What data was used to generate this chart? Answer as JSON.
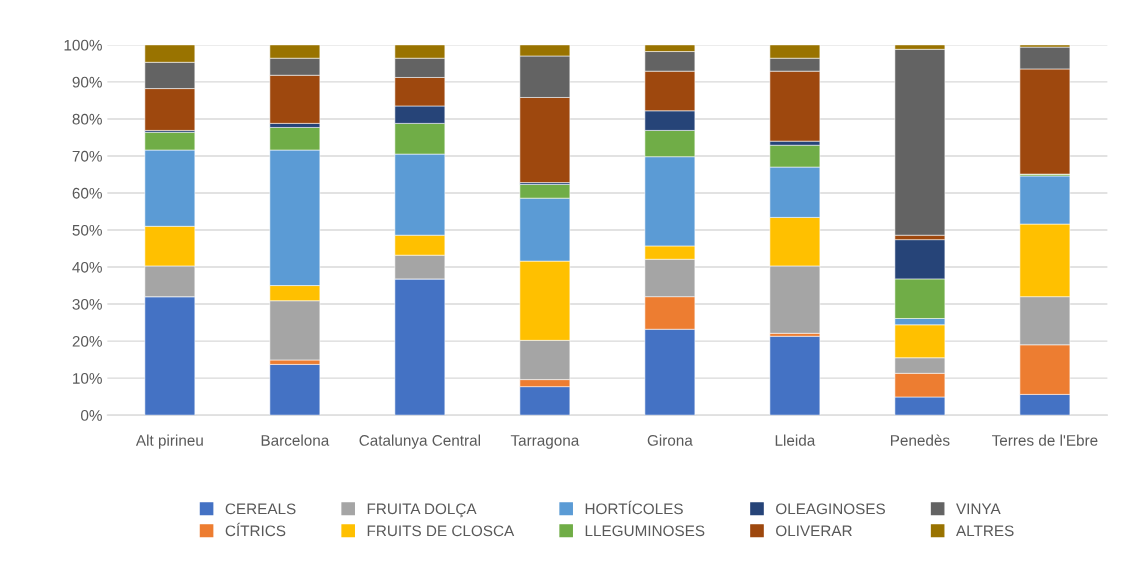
{
  "chart_data": {
    "type": "bar",
    "stacked": true,
    "categories": [
      "Alt pirineu",
      "Barcelona",
      "Catalunya Central",
      "Tarragona",
      "Girona",
      "Lleida",
      "Penedès",
      "Terres de l'Ebre"
    ],
    "series": [
      {
        "name": "CEREALS",
        "color": "#4472c4",
        "values": [
          32.0,
          13.7,
          36.8,
          7.7,
          23.2,
          21.3,
          4.9,
          5.6
        ]
      },
      {
        "name": "CÍTRICS",
        "color": "#ed7d31",
        "values": [
          0,
          1.2,
          0,
          1.9,
          8.8,
          0.8,
          6.4,
          13.4
        ]
      },
      {
        "name": "FRUITA DOLÇA",
        "color": "#a5a5a5",
        "values": [
          8.3,
          16.0,
          6.4,
          10.6,
          10.1,
          18.2,
          4.2,
          13.0
        ]
      },
      {
        "name": "FRUITS DE CLOSCA",
        "color": "#ffc000",
        "values": [
          10.7,
          4.1,
          5.4,
          21.4,
          3.6,
          13.1,
          8.9,
          19.6
        ]
      },
      {
        "name": "HORTÍCOLES",
        "color": "#5b9bd5",
        "values": [
          20.6,
          36.6,
          21.9,
          17.0,
          24.1,
          13.6,
          1.7,
          13.0
        ]
      },
      {
        "name": "LLEGUMINOSES",
        "color": "#70ad47",
        "values": [
          4.8,
          6.1,
          8.3,
          3.7,
          7.1,
          5.9,
          10.7,
          0.5
        ]
      },
      {
        "name": "OLEAGINOSES",
        "color": "#264478",
        "values": [
          0.5,
          1.1,
          4.7,
          0.5,
          5.3,
          1.1,
          10.6,
          0
        ]
      },
      {
        "name": "OLIVERAR",
        "color": "#9e480e",
        "values": [
          11.3,
          13.0,
          7.7,
          23.0,
          10.7,
          18.9,
          1.2,
          28.4
        ]
      },
      {
        "name": "VINYA",
        "color": "#636363",
        "values": [
          7.1,
          4.6,
          5.2,
          11.2,
          5.3,
          3.5,
          50.2,
          5.9
        ]
      },
      {
        "name": "ALTRES",
        "color": "#997300",
        "values": [
          4.7,
          3.6,
          3.6,
          3.0,
          1.8,
          3.6,
          1.2,
          0.6
        ]
      }
    ],
    "ylim": [
      0,
      100
    ],
    "yticks": [
      {
        "value": 0,
        "label": "0%"
      },
      {
        "value": 10,
        "label": "10%"
      },
      {
        "value": 20,
        "label": "20%"
      },
      {
        "value": 30,
        "label": "30%"
      },
      {
        "value": 40,
        "label": "40%"
      },
      {
        "value": 50,
        "label": "50%"
      },
      {
        "value": 60,
        "label": "60%"
      },
      {
        "value": 70,
        "label": "70%"
      },
      {
        "value": 80,
        "label": "80%"
      },
      {
        "value": 90,
        "label": "90%"
      },
      {
        "value": 100,
        "label": "100%"
      }
    ],
    "grid": "y",
    "legend": "bottom"
  }
}
